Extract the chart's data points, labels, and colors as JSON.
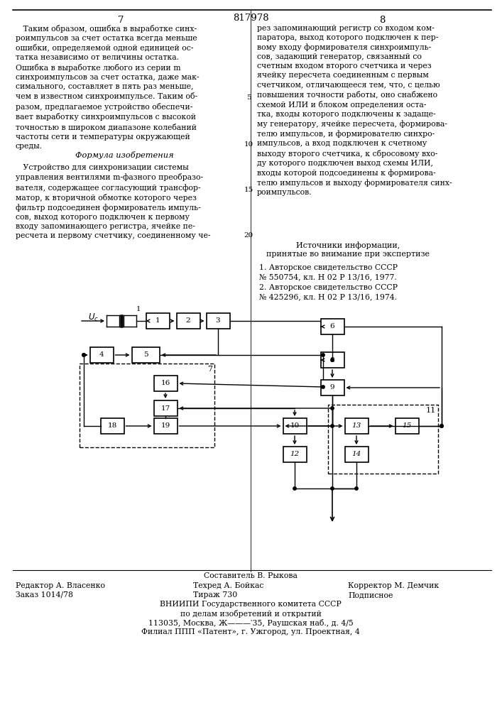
{
  "patent_number": "817978",
  "page_left": "7",
  "page_right": "8",
  "text_left_para1": "   Таким образом, ошибка в выработке синх-\nроимпульсов за счет остатка всегда меньше\nошибки, определяемой одной единицей ос-\nтатка независимо от величины остатка.\nОшибка в выработке любого из серии m\nсинхроимпульсов за счет остатка, даже мак-\nсимального, составляет в пять раз меньше,\nчем в известном синхроимпульсе. Таким об-\nразом, предлагаемое устройство обеспечи-\nвает выработку синхроимпульсов с высокой\nточностью в широком диапазоне колебаний\nчастоты сети и температуры окружающей\nсреды.",
  "formula_title": "Формула изобретения",
  "text_left_para2": "   Устройство для синхронизации системы\nуправления вентилями m-фазного преобразо-\nвателя, содержащее согласующий трансфор-\nматор, к вторичной обмотке которого через\nфильтр подсоединен формирователь импуль-\nсов, выход которого подключен к первому\nвходу запоминающего регистра, ячейке пе-\nресчета и первому счетчику, соединенному че-",
  "text_right": "рез запоминающий регистр со входом ком-\nпаратора, выход которого подключен к пер-\nвому входу формирователя синхроимпуль-\nсов, задающий генератор, связанный со\nсчетным входом второго счетчика и через\nячейку пересчета соединенным с первым\nсчетчиком, отличающееся тем, что, с целью\nповышения точности работы, оно снабжено\nсхемой ИЛИ и блоком определения оста-\nтка, входы которого подключены к задаще-\nму генератору, ячейке пересчета, формирова-\nтелю импульсов, и формирователю синхро-\nимпульсов, а вход подключен к счетному\nвыходу второго счетчика, к сбросовому вхо-\nду которого подключен выход схемы ИЛИ,\nвходы которой подсоединены к формирова-\nтелю импульсов и выходу формирователя синх-\nроимпульсов.",
  "sources_title1": "Источники информации,",
  "sources_title2": "принятые во внимание при экспертизе",
  "source1_line1": "1. Авторское свидетельство СССР",
  "source1_line2": "№ 550754, кл. Н 02 Р 13/16, 1977.",
  "source2_line1": "2. Авторское свидетельство СССР",
  "source2_line2": "№ 425296, кл. Н 02 Р 13/16, 1974.",
  "footer_composer": "Составитель В. Рыкова",
  "footer_editor": "Редактор А. Власенко",
  "footer_tech": "Техред А. Бойкас",
  "footer_corrector": "Корректор М. Демчик",
  "footer_order": "Заказ 1014/78",
  "footer_tirazh": "Тираж 730",
  "footer_podpisnoe": "Подписное",
  "footer_vnipi1": "ВНИИПИ Государственного комитета СССР",
  "footer_vnipi2": "по делам изобретений и открытий",
  "footer_addr": "113035, Москва, Ж———‵35, Раушская наб., д. 4/5",
  "footer_filial": "Филиал ППП «Патент», г. Ужгород, ул. Проектная, 4"
}
